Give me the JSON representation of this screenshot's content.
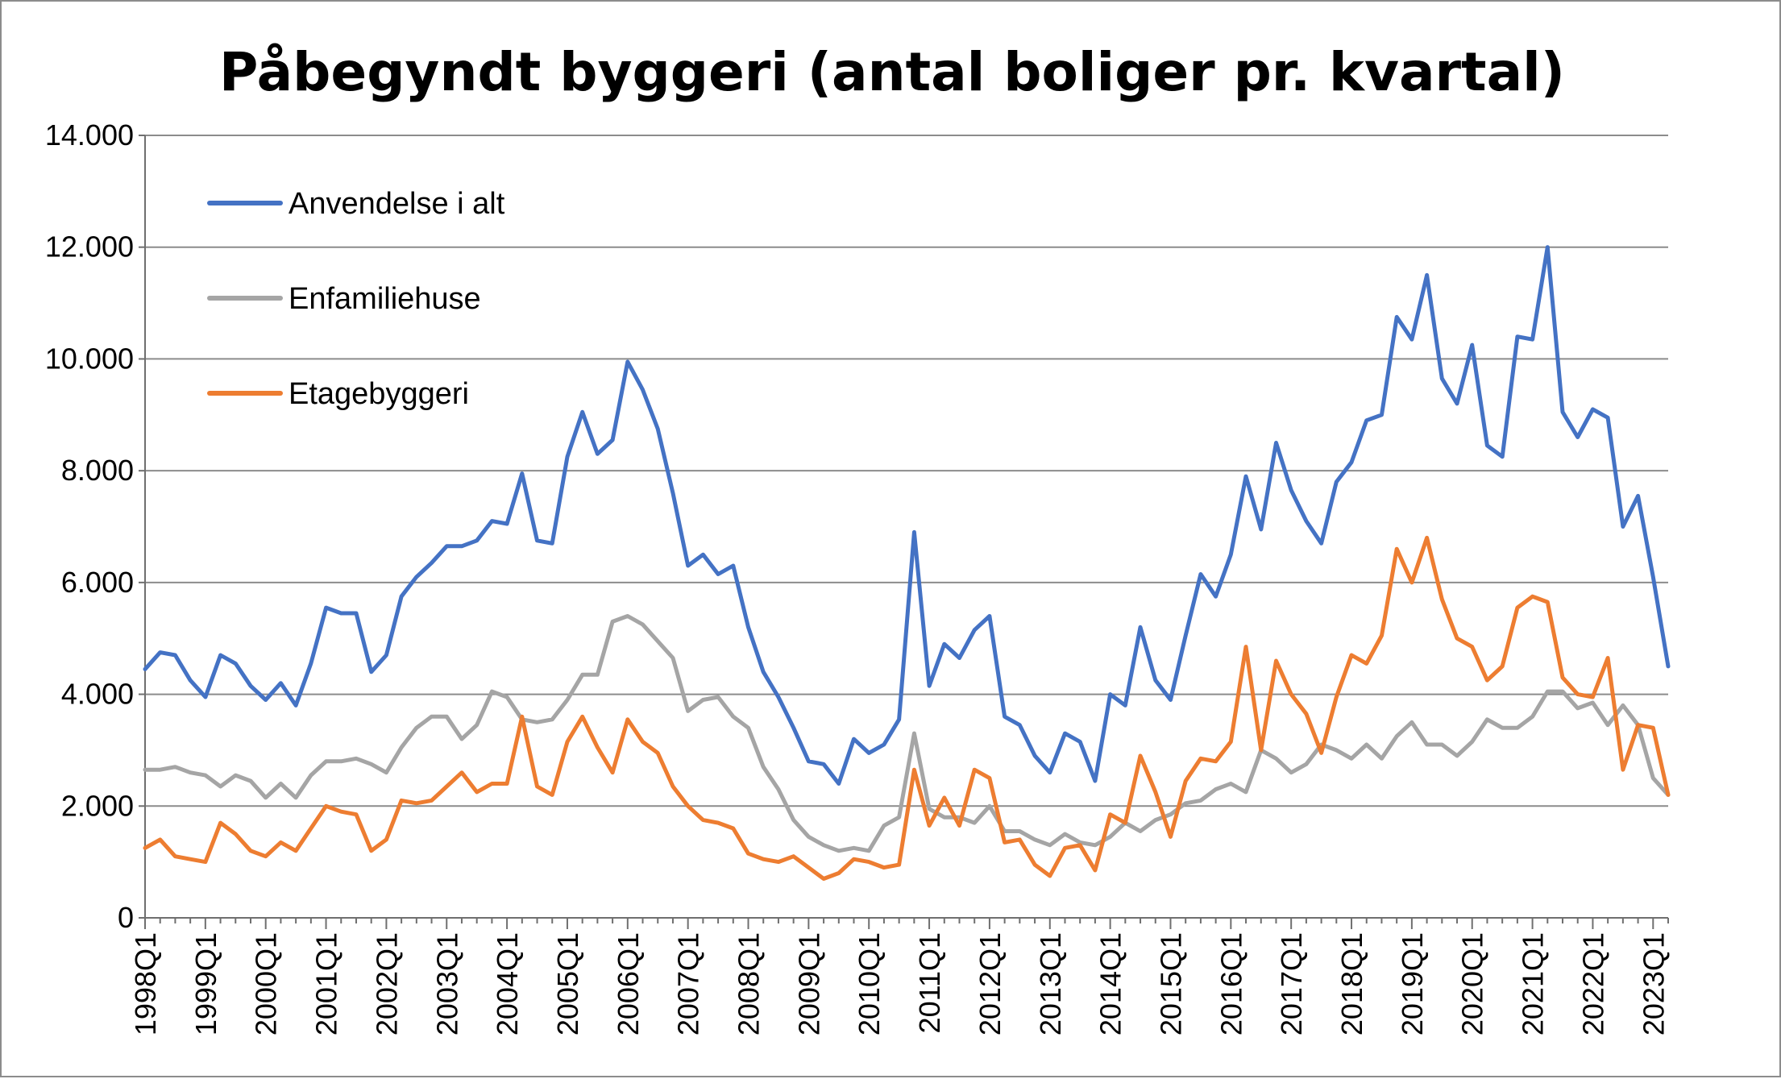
{
  "chart_data": {
    "type": "line",
    "title": "Påbegyndt byggeri (antal boliger pr. kvartal)",
    "xlabel": "",
    "ylabel": "",
    "ylim": [
      0,
      14000
    ],
    "yticks": [
      0,
      2000,
      4000,
      6000,
      8000,
      10000,
      12000,
      14000
    ],
    "ytick_labels": [
      "0",
      "2.000",
      "4.000",
      "6.000",
      "8.000",
      "10.000",
      "12.000",
      "14.000"
    ],
    "xtick_labels": [
      "1998Q1",
      "1999Q1",
      "2000Q1",
      "2001Q1",
      "2002Q1",
      "2003Q1",
      "2004Q1",
      "2005Q1",
      "2006Q1",
      "2007Q1",
      "2008Q1",
      "2009Q1",
      "2010Q1",
      "2011Q1",
      "2012Q1",
      "2013Q1",
      "2014Q1",
      "2015Q1",
      "2016Q1",
      "2017Q1",
      "2018Q1",
      "2019Q1",
      "2020Q1",
      "2021Q1",
      "2022Q1",
      "2023Q1"
    ],
    "x_first": "1998Q1",
    "x_last": "2023Q3",
    "grid": true,
    "legend_position": "top-left",
    "series": [
      {
        "name": "Anvendelse i alt",
        "color": "#4472c4",
        "values": [
          4450,
          4750,
          4700,
          4250,
          3950,
          4700,
          4550,
          4150,
          3900,
          4200,
          3800,
          4550,
          5550,
          5450,
          5450,
          4400,
          4700,
          5750,
          6100,
          6350,
          6650,
          6650,
          6750,
          7100,
          7050,
          7950,
          6750,
          6700,
          8250,
          9050,
          8300,
          8550,
          9950,
          9450,
          8750,
          7600,
          6300,
          6500,
          6150,
          6300,
          5200,
          4400,
          3950,
          3400,
          2800,
          2750,
          2400,
          3200,
          2950,
          3100,
          3550,
          6900,
          4150,
          4900,
          4650,
          5150,
          5400,
          3600,
          3450,
          2900,
          2600,
          3300,
          3150,
          2450,
          4000,
          3800,
          5200,
          4250,
          3900,
          5050,
          6150,
          5750,
          6500,
          7900,
          6950,
          8500,
          7650,
          7100,
          6700,
          7800,
          8150,
          8900,
          9000,
          10750,
          10350,
          11500,
          9650,
          9200,
          10250,
          8450,
          8250,
          10400,
          10350,
          12000,
          9050,
          8600,
          9100,
          8950,
          7000,
          7550,
          6100,
          4500
        ]
      },
      {
        "name": "Enfamiliehuse",
        "color": "#a5a5a5",
        "values": [
          2650,
          2650,
          2700,
          2600,
          2550,
          2350,
          2550,
          2450,
          2150,
          2400,
          2150,
          2550,
          2800,
          2800,
          2850,
          2750,
          2600,
          3050,
          3400,
          3600,
          3600,
          3200,
          3450,
          4050,
          3950,
          3550,
          3500,
          3550,
          3900,
          4350,
          4350,
          5300,
          5400,
          5250,
          4950,
          4650,
          3700,
          3900,
          3950,
          3600,
          3400,
          2700,
          2300,
          1750,
          1450,
          1300,
          1200,
          1250,
          1200,
          1650,
          1800,
          3300,
          1950,
          1800,
          1800,
          1700,
          2000,
          1550,
          1550,
          1400,
          1300,
          1500,
          1350,
          1300,
          1450,
          1700,
          1550,
          1750,
          1850,
          2050,
          2100,
          2300,
          2400,
          2250,
          3000,
          2850,
          2600,
          2750,
          3100,
          3000,
          2850,
          3100,
          2850,
          3250,
          3500,
          3100,
          3100,
          2900,
          3150,
          3550,
          3400,
          3400,
          3600,
          4050,
          4050,
          3750,
          3850,
          3450,
          3800,
          3450,
          2500,
          2200
        ]
      },
      {
        "name": "Etagebyggeri",
        "color": "#ed7d31",
        "values": [
          1250,
          1400,
          1100,
          1050,
          1000,
          1700,
          1500,
          1200,
          1100,
          1350,
          1200,
          1600,
          2000,
          1900,
          1850,
          1200,
          1400,
          2100,
          2050,
          2100,
          2350,
          2600,
          2250,
          2400,
          2400,
          3600,
          2350,
          2200,
          3150,
          3600,
          3050,
          2600,
          3550,
          3150,
          2950,
          2350,
          2000,
          1750,
          1700,
          1600,
          1150,
          1050,
          1000,
          1100,
          900,
          700,
          800,
          1050,
          1000,
          900,
          950,
          2650,
          1650,
          2150,
          1650,
          2650,
          2500,
          1350,
          1400,
          950,
          750,
          1250,
          1300,
          850,
          1850,
          1700,
          2900,
          2250,
          1450,
          2450,
          2850,
          2800,
          3150,
          4850,
          3000,
          4600,
          4000,
          3650,
          2950,
          3950,
          4700,
          4550,
          5050,
          6600,
          6000,
          6800,
          5700,
          5000,
          4850,
          4250,
          4500,
          5550,
          5750,
          5650,
          4300,
          4000,
          3950,
          4650,
          2650,
          3450,
          3400,
          2200
        ]
      }
    ]
  }
}
